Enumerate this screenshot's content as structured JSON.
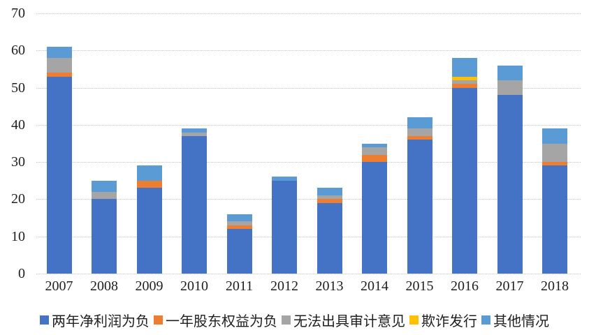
{
  "chart_data": {
    "type": "bar",
    "stacked": true,
    "title": "",
    "xlabel": "",
    "ylabel": "",
    "categories": [
      "2007",
      "2008",
      "2009",
      "2010",
      "2011",
      "2012",
      "2013",
      "2014",
      "2015",
      "2016",
      "2017",
      "2018"
    ],
    "series": [
      {
        "name": "两年净利润为负",
        "color": "#4472C4",
        "values": [
          53,
          20,
          23,
          37,
          12,
          25,
          19,
          30,
          36,
          50,
          48,
          29
        ]
      },
      {
        "name": "一年股东权益为负",
        "color": "#ED7D31",
        "values": [
          1,
          0,
          2,
          0,
          1,
          0,
          1,
          2,
          1,
          1,
          0,
          1
        ]
      },
      {
        "name": "无法出具审计意见",
        "color": "#A5A5A5",
        "values": [
          4,
          2,
          0,
          1,
          1,
          0,
          1,
          2,
          2,
          1,
          4,
          5
        ]
      },
      {
        "name": "欺诈发行",
        "color": "#FFC000",
        "values": [
          0,
          0,
          0,
          0,
          0,
          0,
          0,
          0,
          0,
          1,
          0,
          0
        ]
      },
      {
        "name": "其他情况",
        "color": "#5B9BD5",
        "values": [
          3,
          3,
          4,
          1,
          2,
          1,
          2,
          1,
          3,
          5,
          4,
          4
        ]
      }
    ],
    "totals": [
      61,
      25,
      29,
      39,
      16,
      26,
      23,
      35,
      42,
      58,
      56,
      39
    ],
    "ylim": [
      0,
      70
    ],
    "yticks": [
      0,
      10,
      20,
      30,
      40,
      50,
      60,
      70
    ],
    "grid": true,
    "legend_position": "bottom"
  }
}
